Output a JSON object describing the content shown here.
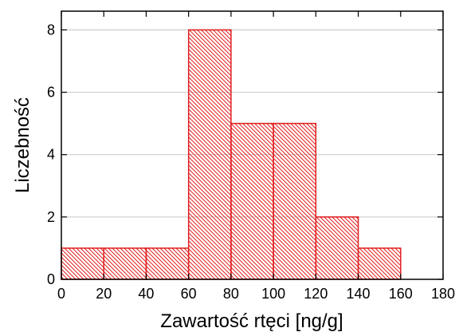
{
  "chart_data": {
    "type": "bar",
    "subtype": "histogram",
    "xlabel": "Zawartość rtęci [ng/g]",
    "ylabel": "Liczebność",
    "bins": [
      {
        "from": 0,
        "to": 20,
        "count": 1
      },
      {
        "from": 20,
        "to": 40,
        "count": 1
      },
      {
        "from": 40,
        "to": 60,
        "count": 1
      },
      {
        "from": 60,
        "to": 80,
        "count": 8
      },
      {
        "from": 80,
        "to": 100,
        "count": 5
      },
      {
        "from": 100,
        "to": 120,
        "count": 5
      },
      {
        "from": 120,
        "to": 140,
        "count": 2
      },
      {
        "from": 140,
        "to": 160,
        "count": 1
      }
    ],
    "xlim": [
      0,
      180
    ],
    "ylim": [
      0,
      8.6
    ],
    "xticks": [
      0,
      20,
      40,
      60,
      80,
      100,
      120,
      140,
      160,
      180
    ],
    "yticks": [
      0,
      2,
      4,
      6,
      8
    ],
    "grid": true,
    "legend": false,
    "bar_color": "#e02020",
    "bar_fill": "diagonal hatch"
  }
}
